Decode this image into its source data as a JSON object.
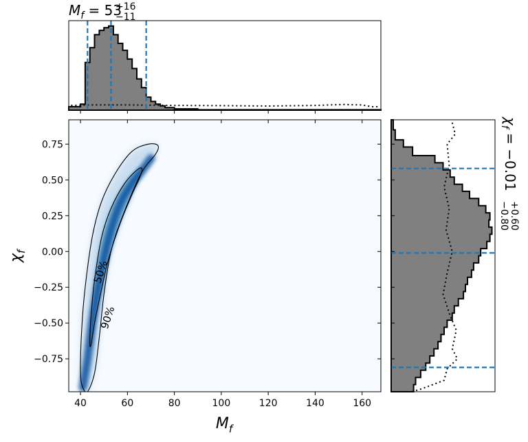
{
  "chart_data": [
    {
      "type": "bar",
      "panel": "top-marginal",
      "title_base": "M",
      "title_sub": "f",
      "title_eq": " = 53",
      "title_sup": "+16",
      "title_low": "−11",
      "x_range": [
        35,
        168
      ],
      "quantile_lines": [
        43,
        53,
        68
      ],
      "hist_bins": [
        {
          "x0": 35,
          "x1": 40,
          "v": 0.04
        },
        {
          "x0": 40,
          "x1": 42,
          "v": 0.07
        },
        {
          "x0": 42,
          "x1": 44,
          "v": 0.55
        },
        {
          "x0": 44,
          "x1": 46,
          "v": 0.72
        },
        {
          "x0": 46,
          "x1": 48,
          "v": 0.87
        },
        {
          "x0": 48,
          "x1": 50,
          "v": 0.92
        },
        {
          "x0": 50,
          "x1": 52,
          "v": 0.95
        },
        {
          "x0": 52,
          "x1": 54,
          "v": 0.97
        },
        {
          "x0": 54,
          "x1": 56,
          "v": 0.87
        },
        {
          "x0": 56,
          "x1": 58,
          "v": 0.77
        },
        {
          "x0": 58,
          "x1": 60,
          "v": 0.69
        },
        {
          "x0": 60,
          "x1": 62,
          "v": 0.59
        },
        {
          "x0": 62,
          "x1": 64,
          "v": 0.48
        },
        {
          "x0": 64,
          "x1": 66,
          "v": 0.36
        },
        {
          "x0": 66,
          "x1": 68,
          "v": 0.26
        },
        {
          "x0": 68,
          "x1": 70,
          "v": 0.15
        },
        {
          "x0": 70,
          "x1": 72,
          "v": 0.1
        },
        {
          "x0": 72,
          "x1": 74,
          "v": 0.07
        },
        {
          "x0": 74,
          "x1": 76,
          "v": 0.05
        },
        {
          "x0": 76,
          "x1": 80,
          "v": 0.03
        },
        {
          "x0": 80,
          "x1": 90,
          "v": 0.015
        },
        {
          "x0": 90,
          "x1": 168,
          "v": 0.005
        }
      ],
      "prior": [
        {
          "x": 36,
          "v": 0.055
        },
        {
          "x": 45,
          "v": 0.06
        },
        {
          "x": 60,
          "v": 0.06
        },
        {
          "x": 80,
          "v": 0.055
        },
        {
          "x": 100,
          "v": 0.052
        },
        {
          "x": 120,
          "v": 0.048
        },
        {
          "x": 140,
          "v": 0.055
        },
        {
          "x": 152,
          "v": 0.065
        },
        {
          "x": 160,
          "v": 0.06
        },
        {
          "x": 164,
          "v": 0.04
        },
        {
          "x": 167,
          "v": 0.04
        }
      ]
    },
    {
      "type": "heatmap",
      "panel": "joint",
      "xlabel_base": "M",
      "xlabel_sub": "f",
      "ylabel_base": "χ",
      "ylabel_sub": "f",
      "xlim": [
        35,
        168
      ],
      "ylim": [
        -0.98,
        0.92
      ],
      "x_ticks": [
        "40",
        "60",
        "80",
        "100",
        "120",
        "140",
        "160"
      ],
      "x_tick_values": [
        40,
        60,
        80,
        100,
        120,
        140,
        160
      ],
      "y_ticks": [
        "0.75",
        "0.50",
        "0.25",
        "0.00",
        "−0.25",
        "−0.50",
        "−0.75"
      ],
      "y_tick_values": [
        0.75,
        0.5,
        0.25,
        0.0,
        -0.25,
        -0.5,
        -0.75
      ],
      "contour_labels": [
        "50%",
        "90%"
      ],
      "contour_label_pos": [
        [
          50,
          -0.15
        ],
        [
          53,
          -0.47
        ]
      ],
      "contour_90": [
        [
          41,
          -0.95
        ],
        [
          40,
          -0.85
        ],
        [
          40.5,
          -0.55
        ],
        [
          42,
          -0.25
        ],
        [
          45,
          0.1
        ],
        [
          49,
          0.35
        ],
        [
          55,
          0.55
        ],
        [
          62,
          0.7
        ],
        [
          69,
          0.75
        ],
        [
          73,
          0.74
        ],
        [
          72,
          0.68
        ],
        [
          66,
          0.55
        ],
        [
          58,
          0.25
        ],
        [
          53,
          0.0
        ],
        [
          50,
          -0.3
        ],
        [
          48,
          -0.6
        ],
        [
          46,
          -0.85
        ],
        [
          43,
          -0.98
        ]
      ],
      "contour_50": [
        [
          44,
          -0.64
        ],
        [
          44.5,
          -0.45
        ],
        [
          46,
          -0.2
        ],
        [
          49,
          0.1
        ],
        [
          53,
          0.3
        ],
        [
          59,
          0.48
        ],
        [
          65,
          0.58
        ],
        [
          66,
          0.55
        ],
        [
          62,
          0.4
        ],
        [
          57,
          0.2
        ],
        [
          52,
          -0.05
        ],
        [
          48.5,
          -0.3
        ],
        [
          46,
          -0.5
        ],
        [
          44.5,
          -0.65
        ]
      ],
      "ridge": [
        [
          41,
          -0.95
        ],
        [
          43,
          -0.75
        ],
        [
          45,
          -0.5
        ],
        [
          47,
          -0.3
        ],
        [
          50,
          -0.05
        ],
        [
          53,
          0.15
        ],
        [
          56,
          0.3
        ],
        [
          59,
          0.4
        ],
        [
          63,
          0.5
        ],
        [
          66,
          0.56
        ],
        [
          70,
          0.65
        ]
      ]
    },
    {
      "type": "bar",
      "panel": "right-marginal",
      "title_base": "χ",
      "title_sub": "f",
      "title_eq": " = −0.01",
      "title_sup": "+0.60",
      "title_low": "−0.80",
      "quantile_lines": [
        0.58,
        -0.01,
        -0.81
      ],
      "hist_bins": [
        {
          "y0": 0.85,
          "y1": 0.92,
          "v": 0.02
        },
        {
          "y0": 0.78,
          "y1": 0.85,
          "v": 0.04
        },
        {
          "y0": 0.73,
          "y1": 0.78,
          "v": 0.12
        },
        {
          "y0": 0.67,
          "y1": 0.73,
          "v": 0.21
        },
        {
          "y0": 0.62,
          "y1": 0.67,
          "v": 0.43
        },
        {
          "y0": 0.57,
          "y1": 0.62,
          "v": 0.51
        },
        {
          "y0": 0.52,
          "y1": 0.57,
          "v": 0.58
        },
        {
          "y0": 0.47,
          "y1": 0.52,
          "v": 0.62
        },
        {
          "y0": 0.42,
          "y1": 0.47,
          "v": 0.7
        },
        {
          "y0": 0.37,
          "y1": 0.42,
          "v": 0.77
        },
        {
          "y0": 0.32,
          "y1": 0.37,
          "v": 0.86
        },
        {
          "y0": 0.27,
          "y1": 0.32,
          "v": 0.93
        },
        {
          "y0": 0.22,
          "y1": 0.27,
          "v": 0.97
        },
        {
          "y0": 0.17,
          "y1": 0.22,
          "v": 0.96
        },
        {
          "y0": 0.12,
          "y1": 0.17,
          "v": 0.99
        },
        {
          "y0": 0.07,
          "y1": 0.12,
          "v": 0.97
        },
        {
          "y0": 0.02,
          "y1": 0.07,
          "v": 0.94
        },
        {
          "y0": -0.03,
          "y1": 0.02,
          "v": 0.88
        },
        {
          "y0": -0.08,
          "y1": -0.03,
          "v": 0.86
        },
        {
          "y0": -0.13,
          "y1": -0.08,
          "v": 0.81
        },
        {
          "y0": -0.18,
          "y1": -0.13,
          "v": 0.79
        },
        {
          "y0": -0.23,
          "y1": -0.18,
          "v": 0.75
        },
        {
          "y0": -0.28,
          "y1": -0.23,
          "v": 0.73
        },
        {
          "y0": -0.33,
          "y1": -0.28,
          "v": 0.71
        },
        {
          "y0": -0.38,
          "y1": -0.33,
          "v": 0.66
        },
        {
          "y0": -0.43,
          "y1": -0.38,
          "v": 0.62
        },
        {
          "y0": -0.48,
          "y1": -0.43,
          "v": 0.6
        },
        {
          "y0": -0.53,
          "y1": -0.48,
          "v": 0.55
        },
        {
          "y0": -0.58,
          "y1": -0.53,
          "v": 0.52
        },
        {
          "y0": -0.63,
          "y1": -0.58,
          "v": 0.49
        },
        {
          "y0": -0.68,
          "y1": -0.63,
          "v": 0.46
        },
        {
          "y0": -0.73,
          "y1": -0.68,
          "v": 0.42
        },
        {
          "y0": -0.78,
          "y1": -0.73,
          "v": 0.38
        },
        {
          "y0": -0.83,
          "y1": -0.78,
          "v": 0.34
        },
        {
          "y0": -0.88,
          "y1": -0.83,
          "v": 0.29
        },
        {
          "y0": -0.93,
          "y1": -0.88,
          "v": 0.24
        },
        {
          "y0": -0.98,
          "y1": -0.93,
          "v": 0.22
        }
      ],
      "prior": [
        {
          "y": 0.9,
          "v": 0.6
        },
        {
          "y": 0.82,
          "v": 0.63
        },
        {
          "y": 0.75,
          "v": 0.55
        },
        {
          "y": 0.6,
          "v": 0.57
        },
        {
          "y": 0.45,
          "v": 0.52
        },
        {
          "y": 0.3,
          "v": 0.57
        },
        {
          "y": 0.15,
          "v": 0.54
        },
        {
          "y": 0.0,
          "v": 0.6
        },
        {
          "y": -0.15,
          "v": 0.55
        },
        {
          "y": -0.3,
          "v": 0.51
        },
        {
          "y": -0.45,
          "v": 0.58
        },
        {
          "y": -0.55,
          "v": 0.64
        },
        {
          "y": -0.68,
          "v": 0.6
        },
        {
          "y": -0.75,
          "v": 0.65
        },
        {
          "y": -0.82,
          "v": 0.55
        },
        {
          "y": -0.9,
          "v": 0.52
        },
        {
          "y": -0.96,
          "v": 0.3
        },
        {
          "y": -0.98,
          "v": 0.2
        }
      ]
    }
  ],
  "colors": {
    "hist_fill": "#808080",
    "quantile": "#1f77b4",
    "density_low": "#f7fbff",
    "density_high": "#08306b"
  }
}
